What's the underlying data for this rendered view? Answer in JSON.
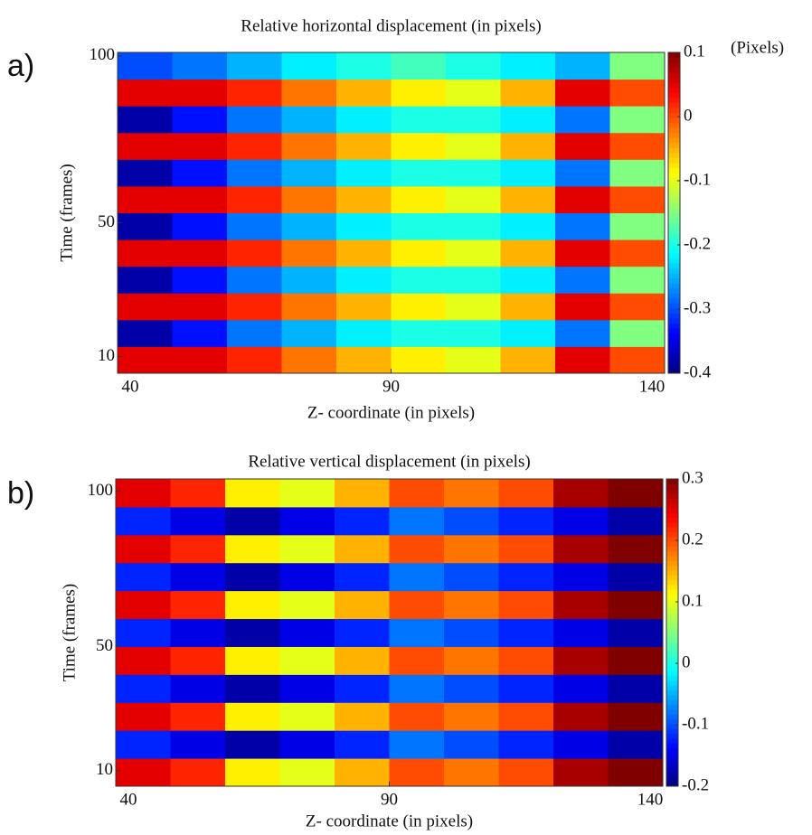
{
  "chart_data": [
    {
      "type": "heatmap",
      "panel_label": "a)",
      "title": "Relative horizontal displacement (in pixels)",
      "xlabel": "Z- coordinate (in pixels)",
      "ylabel": "Time (frames)",
      "colorbar_label": "(Pixels)",
      "colormap": "jet",
      "xbins": [
        40,
        50,
        60,
        70,
        80,
        90,
        100,
        110,
        120,
        130,
        140
      ],
      "ybins": [
        5,
        13,
        21,
        29,
        37,
        45,
        53,
        61,
        69,
        77,
        85,
        93,
        101
      ],
      "xlim": [
        40,
        140
      ],
      "xticks": [
        40,
        90,
        140
      ],
      "ylim": [
        5,
        101
      ],
      "yticks": [
        10,
        50,
        100
      ],
      "clim": [
        -0.4,
        0.1
      ],
      "cticks": [
        0.1,
        0,
        -0.1,
        -0.2,
        -0.3,
        -0.4
      ],
      "values": [
        [
          0.05,
          0.05,
          0.02,
          -0.02,
          -0.05,
          -0.08,
          -0.1,
          -0.05,
          0.05,
          0.0
        ],
        [
          -0.38,
          -0.33,
          -0.28,
          -0.25,
          -0.22,
          -0.2,
          -0.2,
          -0.22,
          -0.28,
          -0.15
        ],
        [
          0.05,
          0.05,
          0.02,
          -0.02,
          -0.05,
          -0.08,
          -0.1,
          -0.05,
          0.05,
          0.0
        ],
        [
          -0.38,
          -0.33,
          -0.28,
          -0.25,
          -0.22,
          -0.2,
          -0.2,
          -0.22,
          -0.28,
          -0.15
        ],
        [
          0.05,
          0.05,
          0.02,
          -0.02,
          -0.05,
          -0.08,
          -0.1,
          -0.05,
          0.05,
          0.0
        ],
        [
          -0.38,
          -0.33,
          -0.28,
          -0.25,
          -0.22,
          -0.2,
          -0.2,
          -0.22,
          -0.28,
          -0.15
        ],
        [
          0.05,
          0.05,
          0.02,
          -0.02,
          -0.05,
          -0.08,
          -0.1,
          -0.05,
          0.05,
          0.0
        ],
        [
          -0.38,
          -0.33,
          -0.28,
          -0.25,
          -0.22,
          -0.2,
          -0.2,
          -0.22,
          -0.28,
          -0.15
        ],
        [
          0.05,
          0.05,
          0.02,
          -0.02,
          -0.05,
          -0.08,
          -0.1,
          -0.05,
          0.05,
          0.0
        ],
        [
          -0.38,
          -0.33,
          -0.28,
          -0.25,
          -0.22,
          -0.2,
          -0.2,
          -0.22,
          -0.28,
          -0.15
        ],
        [
          0.05,
          0.05,
          0.02,
          -0.02,
          -0.05,
          -0.08,
          -0.1,
          -0.05,
          0.05,
          0.0
        ],
        [
          -0.3,
          -0.28,
          -0.25,
          -0.22,
          -0.2,
          -0.18,
          -0.2,
          -0.22,
          -0.25,
          -0.15
        ]
      ]
    },
    {
      "type": "heatmap",
      "panel_label": "b)",
      "title": "Relative vertical displacement (in pixels)",
      "xlabel": "Z- coordinate (in pixels)",
      "ylabel": "Time (frames)",
      "colormap": "jet",
      "xbins": [
        40,
        50,
        60,
        70,
        80,
        90,
        100,
        110,
        120,
        130,
        140
      ],
      "ybins": [
        5,
        14,
        23,
        32,
        41,
        50,
        59,
        68,
        77,
        86,
        95,
        104
      ],
      "xlim": [
        40,
        140
      ],
      "xticks": [
        40,
        90,
        140
      ],
      "ylim": [
        5,
        104
      ],
      "yticks": [
        10,
        50,
        100
      ],
      "clim": [
        -0.2,
        0.3
      ],
      "cticks": [
        0.3,
        0.2,
        0.1,
        0,
        -0.1,
        -0.2
      ],
      "values": [
        [
          0.25,
          0.22,
          0.12,
          0.1,
          0.15,
          0.2,
          0.18,
          0.2,
          0.28,
          0.3
        ],
        [
          -0.12,
          -0.15,
          -0.18,
          -0.15,
          -0.12,
          -0.08,
          -0.1,
          -0.12,
          -0.15,
          -0.18
        ],
        [
          0.25,
          0.22,
          0.12,
          0.1,
          0.15,
          0.2,
          0.18,
          0.2,
          0.28,
          0.3
        ],
        [
          -0.12,
          -0.15,
          -0.18,
          -0.15,
          -0.12,
          -0.08,
          -0.1,
          -0.12,
          -0.15,
          -0.18
        ],
        [
          0.25,
          0.22,
          0.12,
          0.1,
          0.15,
          0.2,
          0.18,
          0.2,
          0.28,
          0.3
        ],
        [
          -0.12,
          -0.15,
          -0.18,
          -0.15,
          -0.12,
          -0.08,
          -0.1,
          -0.12,
          -0.15,
          -0.18
        ],
        [
          0.25,
          0.22,
          0.12,
          0.1,
          0.15,
          0.2,
          0.18,
          0.2,
          0.28,
          0.3
        ],
        [
          -0.12,
          -0.15,
          -0.18,
          -0.15,
          -0.12,
          -0.08,
          -0.1,
          -0.12,
          -0.15,
          -0.18
        ],
        [
          0.25,
          0.22,
          0.12,
          0.1,
          0.15,
          0.2,
          0.18,
          0.2,
          0.28,
          0.3
        ],
        [
          -0.12,
          -0.15,
          -0.18,
          -0.15,
          -0.12,
          -0.08,
          -0.1,
          -0.12,
          -0.15,
          -0.18
        ],
        [
          0.25,
          0.22,
          0.12,
          0.1,
          0.15,
          0.2,
          0.18,
          0.2,
          0.28,
          0.3
        ]
      ]
    }
  ]
}
